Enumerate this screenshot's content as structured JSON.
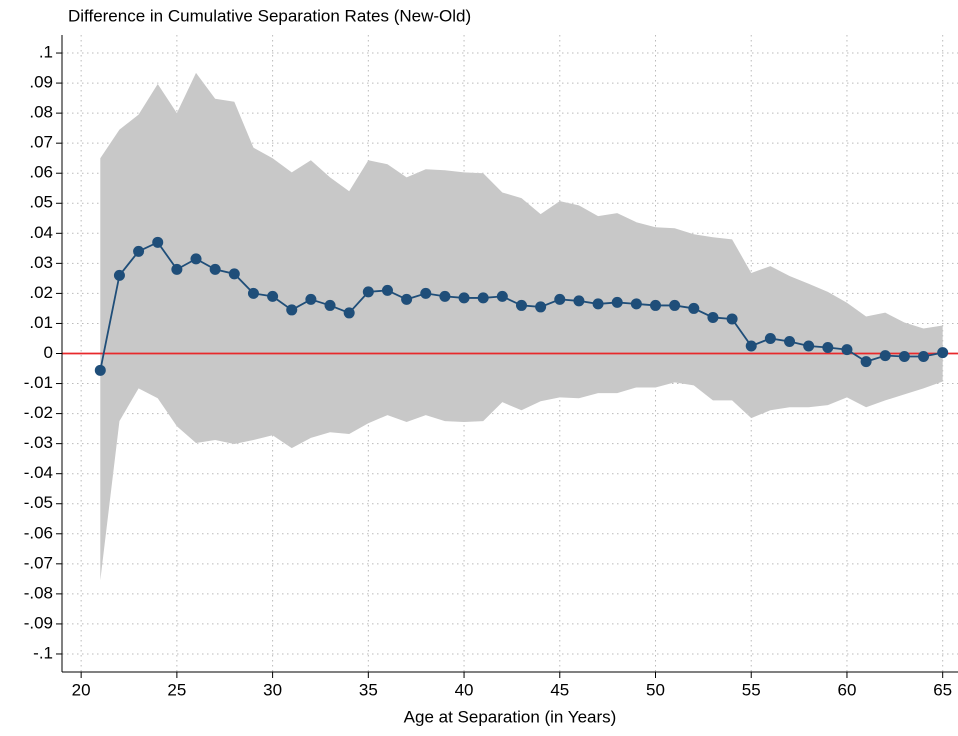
{
  "chart_data": {
    "type": "line",
    "title": "Difference in Cumulative Separation Rates (New-Old)",
    "x_label": "Age at Separation (in Years)",
    "x": [
      21,
      22,
      23,
      24,
      25,
      26,
      27,
      28,
      29,
      30,
      31,
      32,
      33,
      34,
      35,
      36,
      37,
      38,
      39,
      40,
      41,
      42,
      43,
      44,
      45,
      46,
      47,
      48,
      49,
      50,
      51,
      52,
      53,
      54,
      55,
      56,
      57,
      58,
      59,
      60,
      61,
      62,
      63,
      64,
      65
    ],
    "values": [
      -0.0056,
      0.026,
      0.034,
      0.037,
      0.028,
      0.0315,
      0.028,
      0.0265,
      0.02,
      0.019,
      0.0145,
      0.018,
      0.016,
      0.0135,
      0.0205,
      0.021,
      0.018,
      0.02,
      0.019,
      0.0185,
      0.0185,
      0.019,
      0.016,
      0.0155,
      0.018,
      0.0175,
      0.0165,
      0.017,
      0.0165,
      0.016,
      0.016,
      0.015,
      0.012,
      0.0115,
      0.0025,
      0.005,
      0.004,
      0.0025,
      0.002,
      0.0013,
      -0.0027,
      -0.0007,
      -0.001,
      -0.001,
      0.0003
    ],
    "upper": [
      0.065,
      0.0745,
      0.0795,
      0.0897,
      0.08,
      0.0934,
      0.0848,
      0.0838,
      0.0685,
      0.065,
      0.0603,
      0.0643,
      0.0586,
      0.054,
      0.0643,
      0.063,
      0.0586,
      0.0613,
      0.061,
      0.0603,
      0.06,
      0.0536,
      0.0517,
      0.0464,
      0.0507,
      0.0493,
      0.0457,
      0.0467,
      0.0437,
      0.042,
      0.0417,
      0.0397,
      0.0387,
      0.038,
      0.0268,
      0.0291,
      0.0258,
      0.0232,
      0.0205,
      0.0169,
      0.0123,
      0.0136,
      0.0103,
      0.0083,
      0.0093
    ],
    "lower": [
      -0.0755,
      -0.0225,
      -0.0116,
      -0.0149,
      -0.0242,
      -0.0298,
      -0.0288,
      -0.0301,
      -0.0288,
      -0.0272,
      -0.0315,
      -0.0281,
      -0.0262,
      -0.0268,
      -0.0232,
      -0.0205,
      -0.0228,
      -0.0205,
      -0.0225,
      -0.0228,
      -0.0225,
      -0.0162,
      -0.0189,
      -0.0159,
      -0.0146,
      -0.0149,
      -0.0132,
      -0.0132,
      -0.0113,
      -0.0113,
      -0.0096,
      -0.0106,
      -0.0156,
      -0.0156,
      -0.0215,
      -0.0189,
      -0.0179,
      -0.0179,
      -0.0172,
      -0.0146,
      -0.0179,
      -0.0156,
      -0.0136,
      -0.0116,
      -0.0093
    ],
    "color": "#1f4e79",
    "band_color": "#c8c8c8",
    "hline": 0,
    "hline_color": "#e8292b",
    "xlim": [
      19,
      65.8
    ],
    "xticks": [
      20,
      25,
      30,
      35,
      40,
      45,
      50,
      55,
      60,
      65
    ],
    "ylim": [
      -0.106,
      0.106
    ],
    "yticks": [
      {
        "value": 0.1,
        "label": ".1"
      },
      {
        "value": 0.09,
        "label": ".09"
      },
      {
        "value": 0.08,
        "label": ".08"
      },
      {
        "value": 0.07,
        "label": ".07"
      },
      {
        "value": 0.06,
        "label": ".06"
      },
      {
        "value": 0.05,
        "label": ".05"
      },
      {
        "value": 0.04,
        "label": ".04"
      },
      {
        "value": 0.03,
        "label": ".03"
      },
      {
        "value": 0.02,
        "label": ".02"
      },
      {
        "value": 0.01,
        "label": ".01"
      },
      0,
      {
        "value": -0.01,
        "label": "-.01"
      },
      {
        "value": -0.02,
        "label": "-.02"
      },
      {
        "value": -0.03,
        "label": "-.03"
      },
      {
        "value": -0.04,
        "label": "-.04"
      },
      {
        "value": -0.05,
        "label": "-.05"
      },
      {
        "value": -0.06,
        "label": "-.06"
      },
      {
        "value": -0.07,
        "label": "-.07"
      },
      {
        "value": -0.08,
        "label": "-.08"
      },
      {
        "value": -0.09,
        "label": "-.09"
      },
      {
        "value": -0.1,
        "label": "-.1"
      }
    ],
    "grid": true
  }
}
